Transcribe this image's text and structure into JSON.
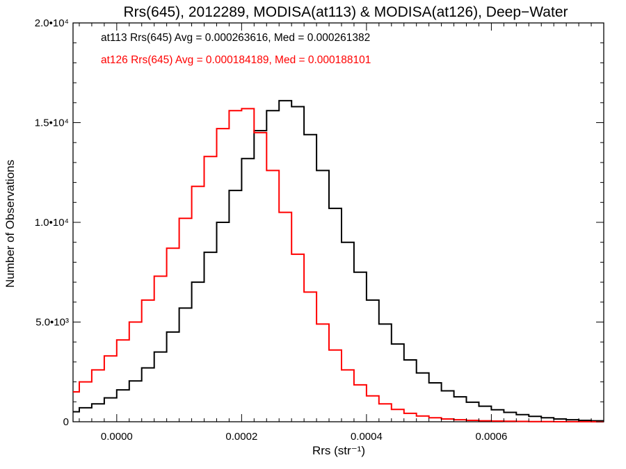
{
  "chart_data": {
    "type": "line",
    "title": "Rrs(645), 2012289, MODISA(at113) & MODISA(at126), Deep−Water",
    "xlabel": "Rrs (str⁻¹)",
    "ylabel": "Number of Observations",
    "xlim": [
      -7e-05,
      0.00078
    ],
    "ylim": [
      0,
      20000
    ],
    "x_ticks": [
      0.0,
      0.0002,
      0.0004,
      0.0006
    ],
    "x_tick_labels": [
      "0.0000",
      "0.0002",
      "0.0004",
      "0.0006"
    ],
    "y_ticks": [
      0,
      5000,
      10000,
      15000,
      20000
    ],
    "y_tick_labels": [
      "0",
      "5.0•10³",
      "1.0•10⁴",
      "1.5•10⁴",
      "2.0•10⁴"
    ],
    "grid": false,
    "legend_position": "top-left",
    "series": [
      {
        "name": "at113 Rrs(645) Avg = 0.000263616, Med = 0.000261382",
        "color": "#000000",
        "x": [
          -7e-05,
          -5e-05,
          -3e-05,
          -1e-05,
          1e-05,
          3e-05,
          5e-05,
          7e-05,
          9e-05,
          0.00011,
          0.00013,
          0.00015,
          0.00017,
          0.00019,
          0.00021,
          0.00023,
          0.00025,
          0.00027,
          0.00029,
          0.00031,
          0.00033,
          0.00035,
          0.00037,
          0.00039,
          0.00041,
          0.00043,
          0.00045,
          0.00047,
          0.00049,
          0.00051,
          0.00053,
          0.00055,
          0.00057,
          0.00059,
          0.00061,
          0.00063,
          0.00065,
          0.00067,
          0.00069,
          0.00071,
          0.00073,
          0.00075,
          0.00077
        ],
        "y": [
          500,
          700,
          900,
          1200,
          1600,
          2050,
          2700,
          3500,
          4500,
          5700,
          7000,
          8500,
          10000,
          11600,
          13200,
          14600,
          15600,
          16100,
          15800,
          14400,
          12600,
          10700,
          9000,
          7500,
          6100,
          4900,
          3900,
          3100,
          2450,
          1950,
          1550,
          1250,
          980,
          780,
          600,
          470,
          360,
          270,
          200,
          140,
          100,
          70,
          50
        ]
      },
      {
        "name": "at126 Rrs(645) Avg = 0.000184189, Med = 0.000188101",
        "color": "#ff0000",
        "x": [
          -7e-05,
          -5e-05,
          -3e-05,
          -1e-05,
          1e-05,
          3e-05,
          5e-05,
          7e-05,
          9e-05,
          0.00011,
          0.00013,
          0.00015,
          0.00017,
          0.00019,
          0.00021,
          0.00023,
          0.00025,
          0.00027,
          0.00029,
          0.00031,
          0.00033,
          0.00035,
          0.00037,
          0.00039,
          0.00041,
          0.00043,
          0.00045,
          0.00047,
          0.00049,
          0.00051,
          0.00053,
          0.00055,
          0.00057,
          0.00059,
          0.00061,
          0.00063,
          0.00065,
          0.00067,
          0.00069,
          0.00071,
          0.00073,
          0.00075,
          0.00077
        ],
        "y": [
          1500,
          2000,
          2600,
          3300,
          4100,
          5000,
          6100,
          7300,
          8700,
          10200,
          11800,
          13300,
          14700,
          15600,
          15700,
          14500,
          12600,
          10500,
          8400,
          6500,
          4900,
          3600,
          2600,
          1850,
          1300,
          900,
          620,
          420,
          290,
          200,
          140,
          100,
          70,
          50,
          35,
          25,
          18,
          12,
          8,
          5,
          3,
          2,
          1
        ]
      }
    ]
  }
}
